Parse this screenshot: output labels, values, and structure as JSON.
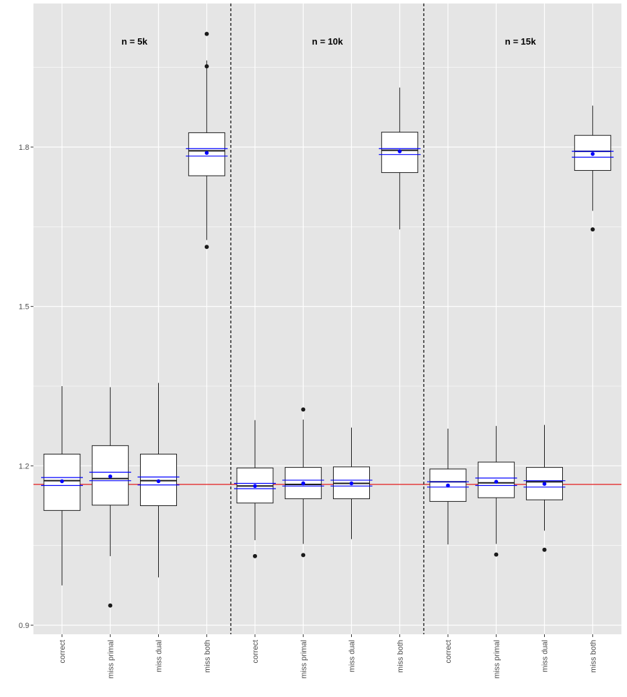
{
  "chart_data": {
    "type": "boxplot",
    "title": "",
    "xlabel": "",
    "ylabel": "",
    "ylim": [
      0.9,
      2.05
    ],
    "yticks": [
      0.9,
      1.2,
      1.5,
      1.8
    ],
    "ytick_labels": [
      "0.9",
      "1.2",
      "1.5",
      "1.8"
    ],
    "reference_line": {
      "y": 1.165,
      "color": "#e41a1c"
    },
    "colors": {
      "panel": "#e5e5e5",
      "grid": "#ffffff",
      "box_edge": "#1a1a1a",
      "mean": "#0000ff",
      "reference": "#e41a1c",
      "separator": "#000000"
    },
    "categories": [
      "correct",
      "miss primal",
      "miss dual",
      "miss both",
      "correct",
      "miss primal",
      "miss dual",
      "miss both",
      "correct",
      "miss primal",
      "miss dual",
      "miss both"
    ],
    "groups": [
      {
        "label": "n = 5k"
      },
      {
        "label": "n = 10k"
      },
      {
        "label": "n = 15k"
      }
    ],
    "boxes": [
      {
        "group": 0,
        "category": "correct",
        "whisker_low": 0.975,
        "q1": 1.116,
        "median": 1.172,
        "q3": 1.222,
        "whisker_high": 1.35,
        "mean": 1.171,
        "ci": [
          1.163,
          1.178
        ],
        "outliers": []
      },
      {
        "group": 0,
        "category": "miss primal",
        "whisker_low": 1.03,
        "q1": 1.126,
        "median": 1.176,
        "q3": 1.238,
        "whisker_high": 1.348,
        "mean": 1.18,
        "ci": [
          1.172,
          1.188
        ],
        "outliers": [
          0.937
        ]
      },
      {
        "group": 0,
        "category": "miss dual",
        "whisker_low": 0.99,
        "q1": 1.125,
        "median": 1.172,
        "q3": 1.222,
        "whisker_high": 1.356,
        "mean": 1.171,
        "ci": [
          1.164,
          1.179
        ],
        "outliers": []
      },
      {
        "group": 0,
        "category": "miss both",
        "whisker_low": 1.625,
        "q1": 1.746,
        "median": 1.793,
        "q3": 1.827,
        "whisker_high": 1.963,
        "mean": 1.789,
        "ci": [
          1.783,
          1.797
        ],
        "outliers": [
          1.612,
          1.952,
          2.013
        ]
      },
      {
        "group": 1,
        "category": "correct",
        "whisker_low": 1.06,
        "q1": 1.13,
        "median": 1.162,
        "q3": 1.196,
        "whisker_high": 1.286,
        "mean": 1.162,
        "ci": [
          1.157,
          1.167
        ],
        "outliers": [
          1.03
        ]
      },
      {
        "group": 1,
        "category": "miss primal",
        "whisker_low": 1.053,
        "q1": 1.138,
        "median": 1.165,
        "q3": 1.197,
        "whisker_high": 1.287,
        "mean": 1.167,
        "ci": [
          1.162,
          1.173
        ],
        "outliers": [
          1.032,
          1.306
        ]
      },
      {
        "group": 1,
        "category": "miss dual",
        "whisker_low": 1.062,
        "q1": 1.138,
        "median": 1.167,
        "q3": 1.198,
        "whisker_high": 1.272,
        "mean": 1.167,
        "ci": [
          1.162,
          1.173
        ],
        "outliers": []
      },
      {
        "group": 1,
        "category": "miss both",
        "whisker_low": 1.645,
        "q1": 1.752,
        "median": 1.794,
        "q3": 1.828,
        "whisker_high": 1.912,
        "mean": 1.792,
        "ci": [
          1.786,
          1.797
        ],
        "outliers": []
      },
      {
        "group": 2,
        "category": "correct",
        "whisker_low": 1.052,
        "q1": 1.133,
        "median": 1.17,
        "q3": 1.194,
        "whisker_high": 1.27,
        "mean": 1.163,
        "ci": [
          1.16,
          1.17
        ],
        "outliers": []
      },
      {
        "group": 2,
        "category": "miss primal",
        "whisker_low": 1.053,
        "q1": 1.14,
        "median": 1.168,
        "q3": 1.207,
        "whisker_high": 1.275,
        "mean": 1.17,
        "ci": [
          1.163,
          1.177
        ],
        "outliers": [
          1.033
        ]
      },
      {
        "group": 2,
        "category": "miss dual",
        "whisker_low": 1.078,
        "q1": 1.136,
        "median": 1.17,
        "q3": 1.197,
        "whisker_high": 1.277,
        "mean": 1.166,
        "ci": [
          1.16,
          1.172
        ],
        "outliers": [
          1.042
        ]
      },
      {
        "group": 2,
        "category": "miss both",
        "whisker_low": 1.68,
        "q1": 1.756,
        "median": 1.792,
        "q3": 1.822,
        "whisker_high": 1.878,
        "mean": 1.787,
        "ci": [
          1.781,
          1.792
        ],
        "outliers": [
          1.645
        ]
      }
    ]
  }
}
